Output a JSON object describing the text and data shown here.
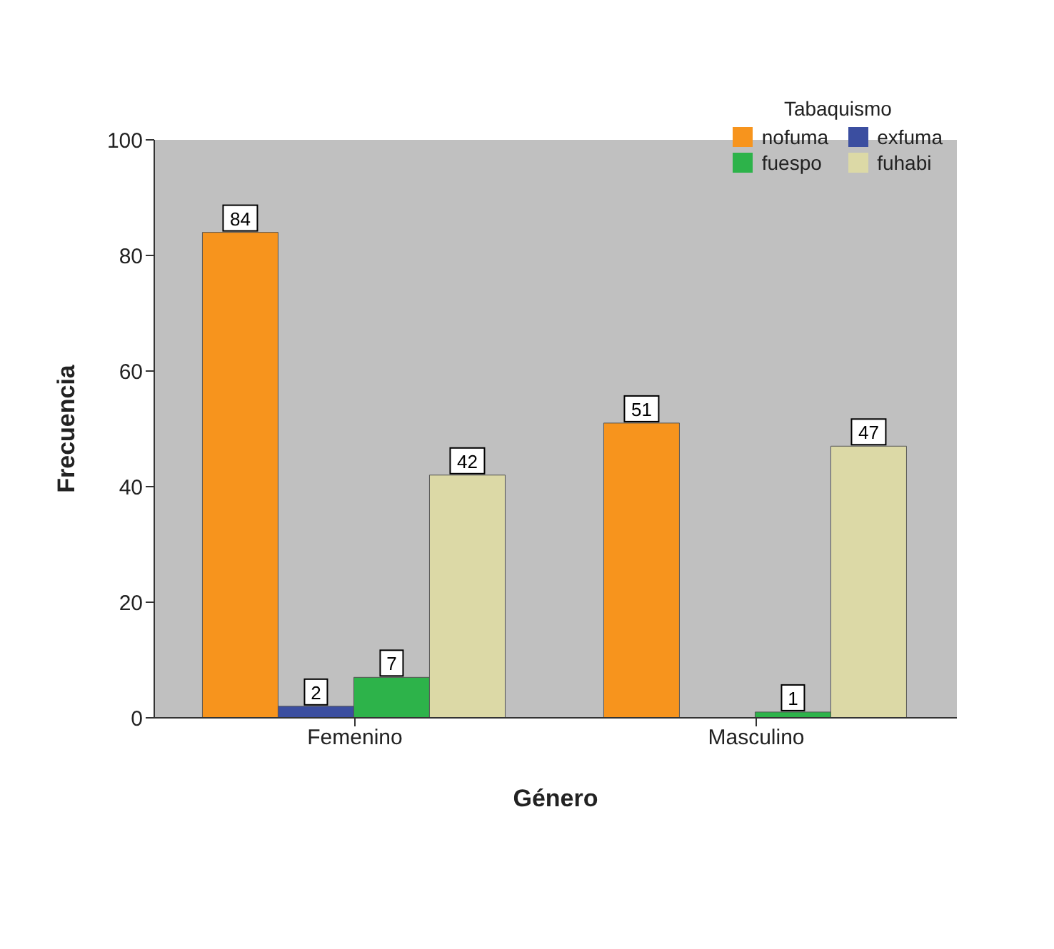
{
  "chart_data": {
    "type": "bar",
    "xlabel": "Género",
    "ylabel": "Frecuencia",
    "legend_title": "Tabaquismo",
    "categories": [
      "Femenino",
      "Masculino"
    ],
    "series": [
      {
        "name": "nofuma",
        "color": "#f7941d",
        "values": [
          84,
          51
        ]
      },
      {
        "name": "exfuma",
        "color": "#3b4ea0",
        "values": [
          2,
          null
        ]
      },
      {
        "name": "fuespo",
        "color": "#2db34a",
        "values": [
          7,
          1
        ]
      },
      {
        "name": "fuhabi",
        "color": "#dcd9a6",
        "values": [
          42,
          47
        ]
      }
    ],
    "ylim": [
      0,
      100
    ],
    "yticks": [
      0,
      20,
      40,
      60,
      80,
      100
    ],
    "grid": false,
    "legend": "top right",
    "data_labels": true
  }
}
